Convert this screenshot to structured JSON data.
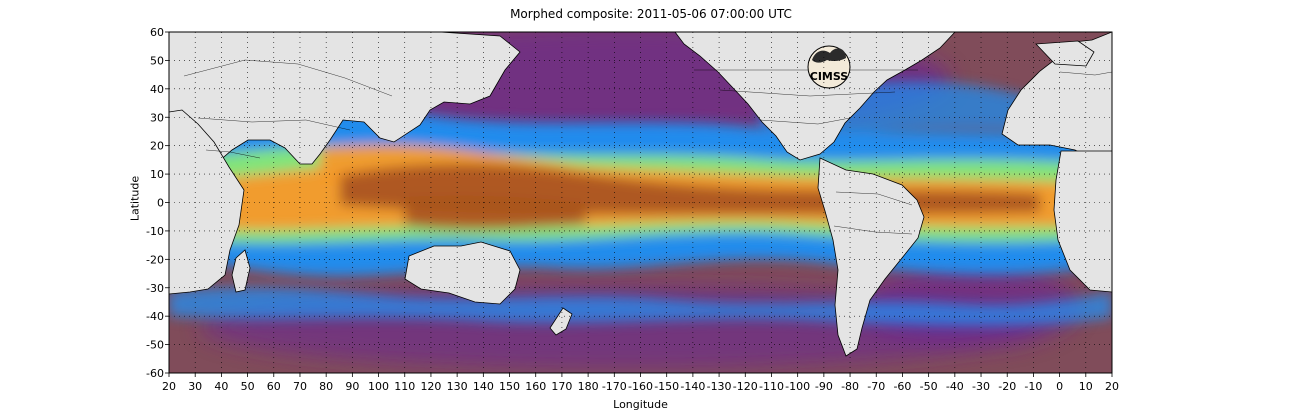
{
  "title": "Morphed composite: 2011-05-06 07:00:00 UTC",
  "xlabel": "Longitude",
  "ylabel": "Latitude",
  "logo_text": "CIMSS",
  "colors": {
    "land": "#e4e4e4",
    "coast": "#000000",
    "high_moisture": "#a8541f",
    "moderate_moisture": "#f39a2c",
    "transition": "#8ff06a",
    "lower_moisture": "#1f8ff2",
    "low_moisture": "#6d2a8f",
    "dry": "#9a6b35"
  },
  "chart_data": {
    "type": "heatmap",
    "title": "Morphed composite: 2011-05-06 07:00:00 UTC",
    "xlabel": "Longitude",
    "ylabel": "Latitude",
    "xlim": [
      20,
      380
    ],
    "ylim": [
      -60,
      60
    ],
    "grid": true,
    "xticks": [
      20,
      30,
      40,
      50,
      60,
      70,
      80,
      90,
      100,
      110,
      120,
      130,
      140,
      150,
      160,
      170,
      180,
      190,
      200,
      210,
      220,
      230,
      240,
      250,
      260,
      270,
      280,
      290,
      300,
      310,
      320,
      330,
      340,
      350,
      360,
      370,
      380
    ],
    "xtick_labels": [
      "20",
      "30",
      "40",
      "50",
      "60",
      "70",
      "80",
      "90",
      "100",
      "110",
      "120",
      "130",
      "140",
      "150",
      "160",
      "170",
      "180",
      "-170",
      "-160",
      "-150",
      "-140",
      "-130",
      "-120",
      "-110",
      "-100",
      "-90",
      "-80",
      "-70",
      "-60",
      "-50",
      "-40",
      "-30",
      "-20",
      "-10",
      "0",
      "10",
      "20"
    ],
    "yticks": [
      60,
      50,
      40,
      30,
      20,
      10,
      0,
      -10,
      -20,
      -30,
      -40,
      -50,
      -60
    ],
    "ytick_labels": [
      "60",
      "50",
      "40",
      "30",
      "20",
      "10",
      "0",
      "-10",
      "-20",
      "-30",
      "-40",
      "-50",
      "-60"
    ]
  }
}
